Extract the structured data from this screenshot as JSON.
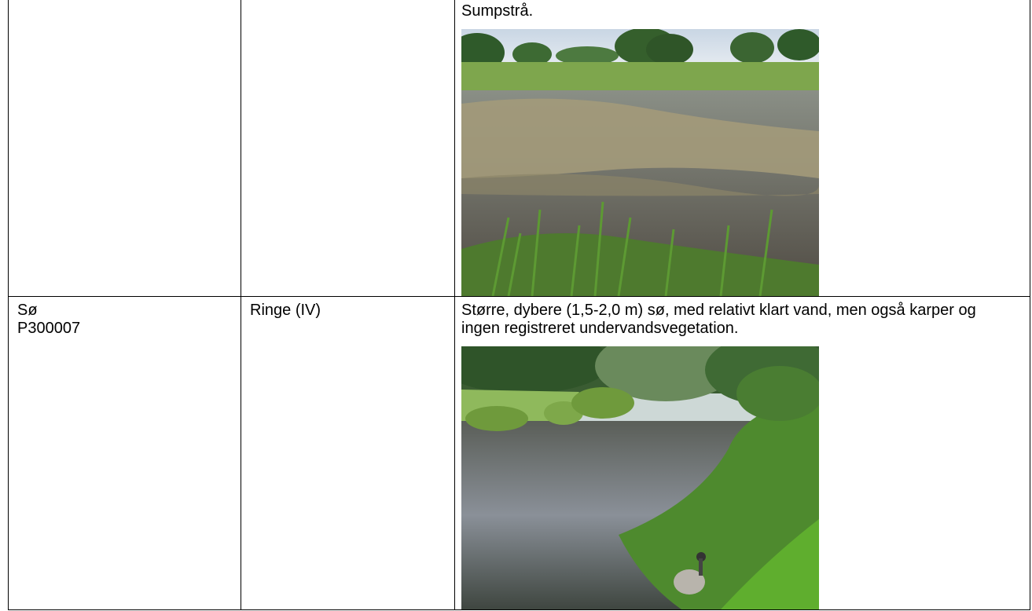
{
  "table": {
    "rows": [
      {
        "description": "Sumpstrå."
      },
      {
        "site": [
          "Sø",
          "P300007"
        ],
        "lake": "Ringe (IV)",
        "description": "Større, dybere (1,5-2,0 m) sø, med relativt klart vand, men også karper og ingen registreret undervandsvegetation."
      }
    ]
  }
}
